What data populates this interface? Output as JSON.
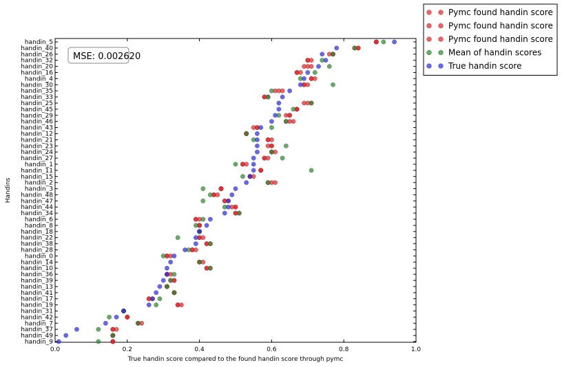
{
  "chart_data": {
    "type": "scatter",
    "title": "",
    "xlabel": "True handin score compared to the found handin score through pymc",
    "ylabel": "Handins",
    "xlim": [
      0.0,
      1.0
    ],
    "xticks": [
      "0.0",
      "0.2",
      "0.4",
      "0.6",
      "0.8",
      "1.0"
    ],
    "annotation": "MSE: 0.002620",
    "legend_position": "outside-top-right",
    "grid": false,
    "categories": [
      "handin_5",
      "handin_40",
      "handin_26",
      "handin_32",
      "handin_20",
      "handin_16",
      "handin_4",
      "handin_30",
      "handin_35",
      "handin_33",
      "handin_25",
      "handin_45",
      "handin_29",
      "handin_46",
      "handin_43",
      "handin_12",
      "handin_21",
      "handin_23",
      "handin_24",
      "handin_27",
      "handin_1",
      "handin_11",
      "handin_15",
      "handin_2",
      "handin_3",
      "handin_48",
      "handin_47",
      "handin_44",
      "handin_34",
      "handin_6",
      "handin_8",
      "handin_18",
      "handin_22",
      "handin_38",
      "handin_28",
      "handin_0",
      "handin_14",
      "handin_10",
      "handin_36",
      "handin_39",
      "handin_13",
      "handin_41",
      "handin_17",
      "handin_19",
      "handin_31",
      "handin_42",
      "handin_7",
      "handin_37",
      "handin_49",
      "handin_9"
    ],
    "series": [
      {
        "name": "Pymc found handin score",
        "color": "#e8262b",
        "values": [
          0.89,
          0.83,
          0.76,
          0.7,
          0.69,
          0.67,
          0.71,
          0.69,
          0.61,
          0.58,
          0.69,
          0.67,
          0.65,
          0.66,
          0.55,
          0.53,
          0.59,
          0.6,
          0.6,
          0.58,
          0.52,
          0.57,
          0.54,
          0.6,
          0.46,
          0.44,
          0.47,
          0.5,
          0.5,
          0.39,
          0.4,
          0.4,
          0.4,
          0.42,
          0.38,
          0.32,
          0.4,
          0.42,
          0.31,
          0.33,
          0.31,
          0.33,
          0.27,
          0.34,
          0.19,
          0.2,
          0.23,
          0.16,
          0.16,
          0.16
        ]
      },
      {
        "name": "Pymc found handin score",
        "color": "#e8262b",
        "values": [
          0.89,
          0.84,
          0.77,
          0.71,
          0.7,
          0.67,
          0.71,
          0.7,
          0.62,
          0.59,
          0.7,
          0.67,
          0.64,
          0.65,
          0.56,
          0.53,
          0.6,
          0.59,
          0.61,
          0.59,
          0.53,
          0.57,
          0.55,
          0.61,
          0.46,
          0.44,
          0.48,
          0.49,
          0.51,
          0.4,
          0.4,
          0.4,
          0.41,
          0.43,
          0.38,
          0.31,
          0.41,
          0.43,
          0.31,
          0.32,
          0.31,
          0.33,
          0.26,
          0.35,
          0.19,
          0.2,
          0.24,
          0.17,
          0.16,
          0.16
        ]
      },
      {
        "name": "Pymc found handin score",
        "color": "#e8262b",
        "values": [
          0.89,
          0.84,
          0.77,
          0.7,
          0.71,
          0.68,
          0.72,
          0.69,
          0.63,
          0.58,
          0.71,
          0.67,
          0.65,
          0.64,
          0.56,
          0.53,
          0.59,
          0.6,
          0.6,
          0.58,
          0.52,
          0.57,
          0.54,
          0.59,
          0.46,
          0.45,
          0.47,
          0.5,
          0.5,
          0.39,
          0.4,
          0.4,
          0.4,
          0.42,
          0.39,
          0.31,
          0.4,
          0.42,
          0.32,
          0.33,
          0.31,
          0.33,
          0.26,
          0.34,
          0.19,
          0.2,
          0.23,
          0.16,
          0.16,
          0.16
        ]
      },
      {
        "name": "Mean of handin scores",
        "color": "#2e8b2e",
        "values": [
          0.91,
          0.83,
          0.77,
          0.74,
          0.76,
          0.72,
          0.68,
          0.77,
          0.6,
          0.59,
          0.71,
          0.66,
          0.62,
          0.64,
          0.6,
          0.53,
          0.55,
          0.64,
          0.6,
          0.63,
          0.5,
          0.71,
          0.52,
          0.59,
          0.41,
          0.43,
          0.41,
          0.47,
          0.51,
          0.41,
          0.39,
          0.4,
          0.34,
          0.43,
          0.37,
          0.3,
          0.4,
          0.43,
          0.33,
          0.32,
          0.31,
          0.33,
          0.29,
          0.28,
          0.19,
          0.15,
          0.23,
          0.12,
          0.16,
          0.12
        ]
      },
      {
        "name": "True handin score",
        "color": "#2b2be8",
        "values": [
          0.94,
          0.78,
          0.74,
          0.75,
          0.73,
          0.7,
          0.69,
          0.68,
          0.65,
          0.63,
          0.62,
          0.62,
          0.61,
          0.6,
          0.57,
          0.56,
          0.56,
          0.56,
          0.56,
          0.55,
          0.55,
          0.55,
          0.54,
          0.53,
          0.5,
          0.49,
          0.48,
          0.48,
          0.47,
          0.43,
          0.42,
          0.4,
          0.39,
          0.39,
          0.36,
          0.33,
          0.32,
          0.31,
          0.31,
          0.3,
          0.29,
          0.28,
          0.27,
          0.26,
          0.19,
          0.17,
          0.14,
          0.06,
          0.03,
          0.01
        ]
      }
    ]
  }
}
